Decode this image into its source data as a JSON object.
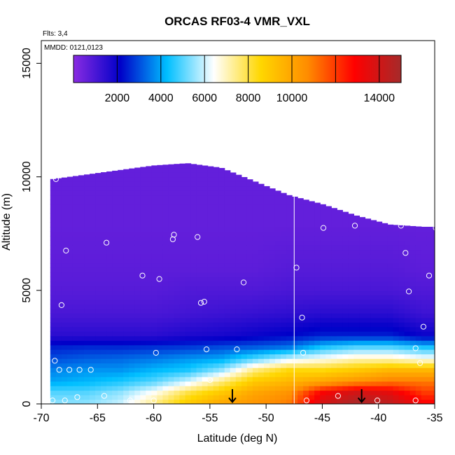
{
  "chart_data": {
    "type": "heatmap",
    "title": "ORCAS RF03-4 VMR_VXL",
    "xlabel": "Latitude (deg N)",
    "ylabel": "Altitude (m)",
    "xlim": [
      -70,
      -35
    ],
    "ylim": [
      0,
      16000
    ],
    "x_ticks": [
      -70,
      -65,
      -60,
      -55,
      -50,
      -45,
      -40,
      -35
    ],
    "y_ticks": [
      0,
      5000,
      10000,
      15000
    ],
    "annotations": [
      "Flts: 3,4",
      "MMDD: 0121,0123"
    ],
    "colorbar": {
      "range": [
        0,
        15000
      ],
      "tick_values": [
        2000,
        4000,
        6000,
        8000,
        10000,
        14000
      ],
      "divider_values": [
        2000,
        4000,
        6000,
        8000,
        10000,
        12000,
        14000
      ],
      "colors": [
        "#8a2be2",
        "#0000c8",
        "#00bfff",
        "#ffffff",
        "#ffd700",
        "#ff8c00",
        "#ff0000",
        "#a52a2a"
      ]
    },
    "field_profile": {
      "lat_columns": [
        -69,
        -66,
        -63,
        -60,
        -57,
        -54,
        -51,
        -48,
        -45,
        -42,
        -39,
        -36
      ],
      "data_top_altitude": [
        9900,
        10100,
        10300,
        10500,
        10600,
        10400,
        9800,
        9200,
        8800,
        8300,
        7900,
        7800
      ],
      "altitudes": [
        0,
        500,
        1000,
        1500,
        2000,
        2500,
        3000,
        4000,
        5000,
        6000,
        8000,
        10000
      ],
      "vmr": [
        [
          5500,
          5000,
          4000,
          3600,
          3000,
          2500,
          1500,
          1000,
          800,
          700,
          600,
          600
        ],
        [
          5500,
          5000,
          4200,
          3800,
          3200,
          2600,
          1500,
          1000,
          800,
          700,
          600,
          600
        ],
        [
          6000,
          5500,
          4500,
          3800,
          3300,
          2600,
          1500,
          1000,
          800,
          700,
          600,
          600
        ],
        [
          7500,
          6500,
          5000,
          4200,
          3500,
          2700,
          1500,
          1000,
          800,
          700,
          600,
          600
        ],
        [
          9000,
          8000,
          6000,
          4500,
          3800,
          2800,
          1700,
          1100,
          900,
          700,
          600,
          600
        ],
        [
          10000,
          9000,
          7500,
          5500,
          4000,
          3000,
          1800,
          1200,
          900,
          700,
          600,
          600
        ],
        [
          10500,
          10000,
          9000,
          7500,
          5000,
          3200,
          2000,
          1300,
          900,
          700,
          600,
          600
        ],
        [
          11000,
          10500,
          9500,
          8500,
          6000,
          3500,
          2200,
          1400,
          1000,
          800,
          600,
          600
        ],
        [
          14000,
          13000,
          10000,
          8500,
          6500,
          4500,
          2500,
          1500,
          1000,
          800,
          600,
          600
        ],
        [
          15000,
          14000,
          10500,
          9000,
          7000,
          5000,
          2500,
          1500,
          1000,
          800,
          600,
          600
        ],
        [
          14500,
          13500,
          11000,
          9500,
          7000,
          5000,
          2500,
          1500,
          1000,
          800,
          600,
          600
        ],
        [
          13000,
          12000,
          11000,
          9500,
          6500,
          4500,
          2000,
          1200,
          900,
          700,
          600,
          600
        ]
      ]
    },
    "sample_points": [
      {
        "lat": -68.7,
        "alt": 9900
      },
      {
        "lat": -67.8,
        "alt": 6750
      },
      {
        "lat": -64.2,
        "alt": 7100
      },
      {
        "lat": -58.2,
        "alt": 7450
      },
      {
        "lat": -58.3,
        "alt": 7250
      },
      {
        "lat": -56.1,
        "alt": 7350
      },
      {
        "lat": -61.0,
        "alt": 5650
      },
      {
        "lat": -59.5,
        "alt": 5500
      },
      {
        "lat": -52.0,
        "alt": 5350
      },
      {
        "lat": -55.8,
        "alt": 4450
      },
      {
        "lat": -55.5,
        "alt": 4500
      },
      {
        "lat": -68.2,
        "alt": 4350
      },
      {
        "lat": -47.3,
        "alt": 6000
      },
      {
        "lat": -46.8,
        "alt": 3800
      },
      {
        "lat": -44.9,
        "alt": 7750
      },
      {
        "lat": -42.1,
        "alt": 7850
      },
      {
        "lat": -38.0,
        "alt": 7850
      },
      {
        "lat": -37.6,
        "alt": 6650
      },
      {
        "lat": -35.5,
        "alt": 5650
      },
      {
        "lat": -37.3,
        "alt": 4950
      },
      {
        "lat": -36.0,
        "alt": 3400
      },
      {
        "lat": -34.9,
        "alt": 7750
      },
      {
        "lat": -68.8,
        "alt": 1900
      },
      {
        "lat": -68.4,
        "alt": 1500
      },
      {
        "lat": -67.5,
        "alt": 1500
      },
      {
        "lat": -66.6,
        "alt": 1500
      },
      {
        "lat": -65.6,
        "alt": 1500
      },
      {
        "lat": -59.8,
        "alt": 2250
      },
      {
        "lat": -55.3,
        "alt": 2400
      },
      {
        "lat": -55.0,
        "alt": 1050
      },
      {
        "lat": -52.6,
        "alt": 2400
      },
      {
        "lat": -46.7,
        "alt": 2250
      },
      {
        "lat": -36.7,
        "alt": 2450
      },
      {
        "lat": -36.3,
        "alt": 1800
      },
      {
        "lat": -69.0,
        "alt": 150
      },
      {
        "lat": -67.9,
        "alt": 150
      },
      {
        "lat": -66.8,
        "alt": 300
      },
      {
        "lat": -64.4,
        "alt": 350
      },
      {
        "lat": -62.1,
        "alt": 150
      },
      {
        "lat": -60.0,
        "alt": 150
      },
      {
        "lat": -46.4,
        "alt": 150
      },
      {
        "lat": -43.6,
        "alt": 350
      },
      {
        "lat": -40.1,
        "alt": 150
      },
      {
        "lat": -36.7,
        "alt": 150
      }
    ],
    "vertical_line_lat": -47.5,
    "arrow_lats": [
      -53.0,
      -41.5
    ]
  }
}
